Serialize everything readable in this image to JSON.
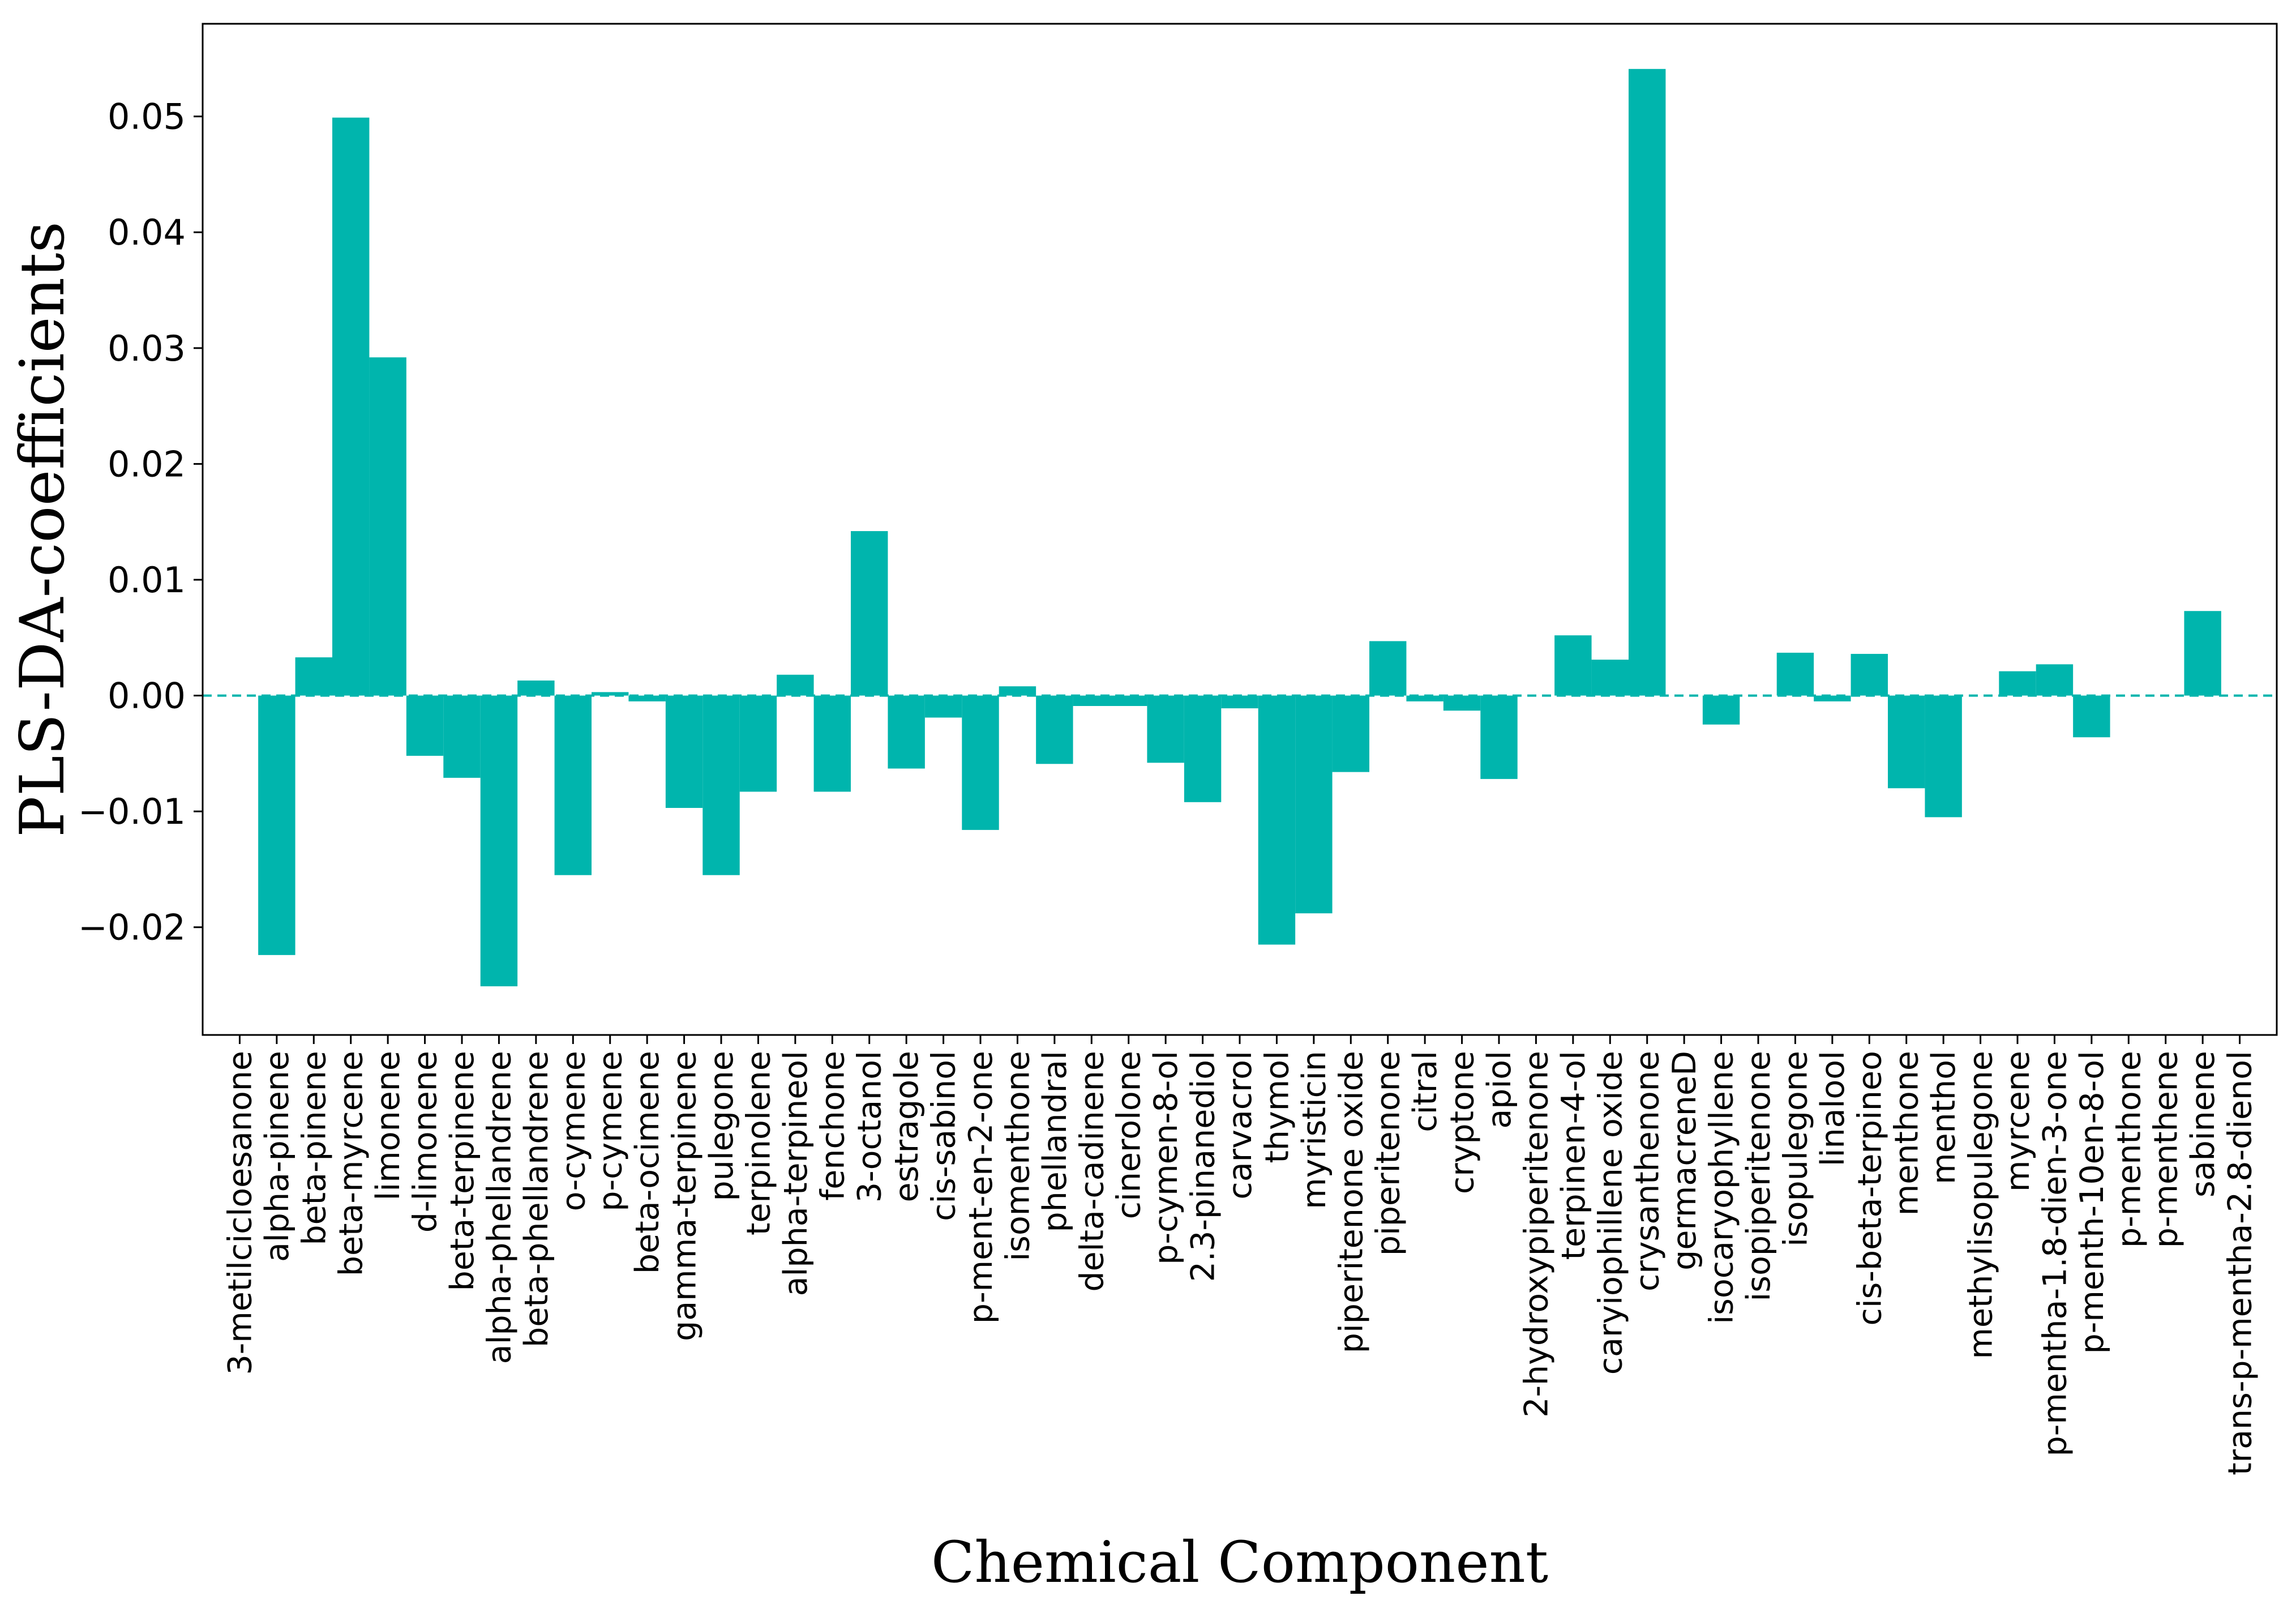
{
  "chart_data": {
    "type": "bar",
    "title": "",
    "xlabel": "Chemical Component",
    "ylabel": "PLS-DA-coefficients",
    "ylim": [
      -0.0293,
      0.058
    ],
    "yticks": [
      -0.02,
      -0.01,
      0.0,
      0.01,
      0.02,
      0.03,
      0.04,
      0.05
    ],
    "ytick_labels": [
      "−0.02",
      "−0.01",
      "0.00",
      "0.01",
      "0.02",
      "0.03",
      "0.04",
      "0.05"
    ],
    "grid": false,
    "legend": "none",
    "reference_line": {
      "y": 0,
      "style": "dashed"
    },
    "bar_color": "#00b5ad",
    "categories": [
      "3-metilcicloesanone",
      "alpha-pinene",
      "beta-pinene",
      "beta-myrcene",
      "limonene",
      "d-limonene",
      "beta-terpinene",
      "alpha-phellandrene",
      "beta-phellandrene",
      "o-cymene",
      "p-cymene",
      "beta-ocimene",
      "gamma-terpinene",
      "pulegone",
      "terpinolene",
      "alpha-terpineol",
      "fenchone",
      "3-octanol",
      "estragole",
      "cis-sabinol",
      "p-ment-en-2-one",
      "isomenthone",
      "phellandral",
      "delta-cadinene",
      "cinerolone",
      "p-cymen-8-ol",
      "2.3-pinanediol",
      "carvacrol",
      "thymol",
      "myristicin",
      "piperitenone oxide",
      "piperitenone",
      "citral",
      "cryptone",
      "apiol",
      "2-hydroxypiperitenone",
      "terpinen-4-ol",
      "caryiophillene oxide",
      "crysanthenone",
      "germacreneD",
      "isocaryophyllene",
      "isopiperitenone",
      "isopulegone",
      "linalool",
      "cis-beta-terpineo",
      "menthone",
      "menthol",
      "methylisopulegone",
      "myrcene",
      "p-mentha-1.8-dien-3-one",
      "p-menth-10en-8-ol",
      "p-menthone",
      "p-menthene",
      "sabinene",
      "trans-p-mentha-2.8-dienol"
    ],
    "values": [
      0.0,
      -0.0224,
      0.0033,
      0.0499,
      0.0292,
      -0.0052,
      -0.0071,
      -0.0251,
      0.0013,
      -0.0155,
      0.0003,
      -0.0005,
      -0.0097,
      -0.0155,
      -0.0083,
      0.0018,
      -0.0083,
      0.0142,
      -0.0063,
      -0.0019,
      -0.0116,
      0.0008,
      -0.0059,
      -0.0009,
      -0.0009,
      -0.0058,
      -0.0092,
      -0.0011,
      -0.0215,
      -0.0188,
      -0.0066,
      0.0047,
      -0.0005,
      -0.0013,
      -0.0072,
      0.0,
      0.0052,
      0.0031,
      0.0541,
      0.0,
      -0.0025,
      0.0,
      0.0037,
      -0.0005,
      0.0036,
      -0.008,
      -0.0105,
      0.0,
      0.0021,
      0.0027,
      -0.0036,
      0.0,
      0.0,
      0.0073,
      0.0
    ]
  }
}
